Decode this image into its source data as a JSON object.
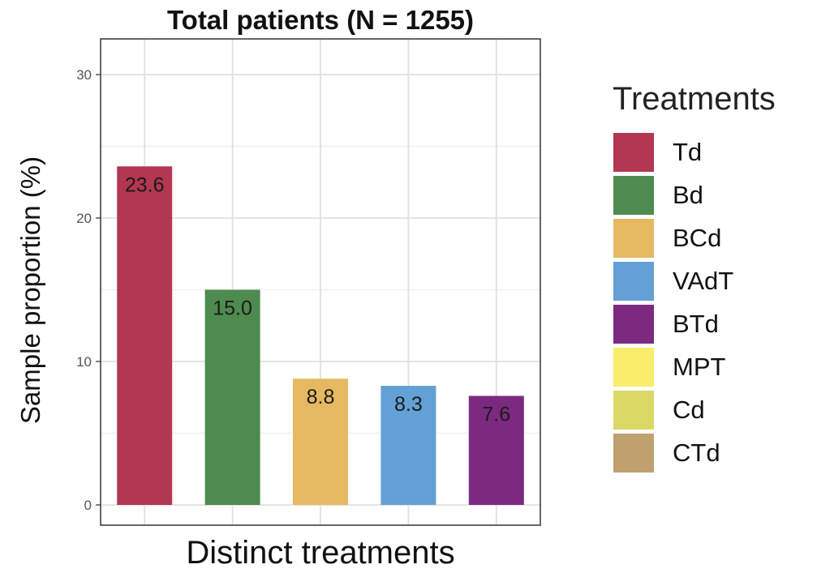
{
  "chart_data": {
    "type": "bar",
    "title": "Total patients (N = 1255)",
    "xlabel": "Distinct treatments",
    "ylabel": "Sample proportion (%)",
    "ylim": [
      0,
      30
    ],
    "yticks": [
      0,
      10,
      20,
      30
    ],
    "grid": true,
    "legend_position": "right",
    "categories": [
      "Td",
      "Bd",
      "BCd",
      "VAdT",
      "BTd"
    ],
    "values": [
      23.6,
      15.0,
      8.8,
      8.3,
      7.6
    ],
    "value_labels": [
      "23.6",
      "15.0",
      "8.8",
      "8.3",
      "7.6"
    ],
    "colors": [
      "#B33750",
      "#4E8B4E",
      "#E5B862",
      "#63A0D6",
      "#7C2A80"
    ],
    "legend": {
      "title": "Treatments",
      "items": [
        {
          "label": "Td",
          "color": "#B33750"
        },
        {
          "label": "Bd",
          "color": "#4E8B4E"
        },
        {
          "label": "BCd",
          "color": "#E5B862"
        },
        {
          "label": "VAdT",
          "color": "#63A0D6"
        },
        {
          "label": "BTd",
          "color": "#7C2A80"
        },
        {
          "label": "MPT",
          "color": "#F8EE6C"
        },
        {
          "label": "Cd",
          "color": "#DAD865"
        },
        {
          "label": "CTd",
          "color": "#BEA16F"
        }
      ]
    }
  }
}
